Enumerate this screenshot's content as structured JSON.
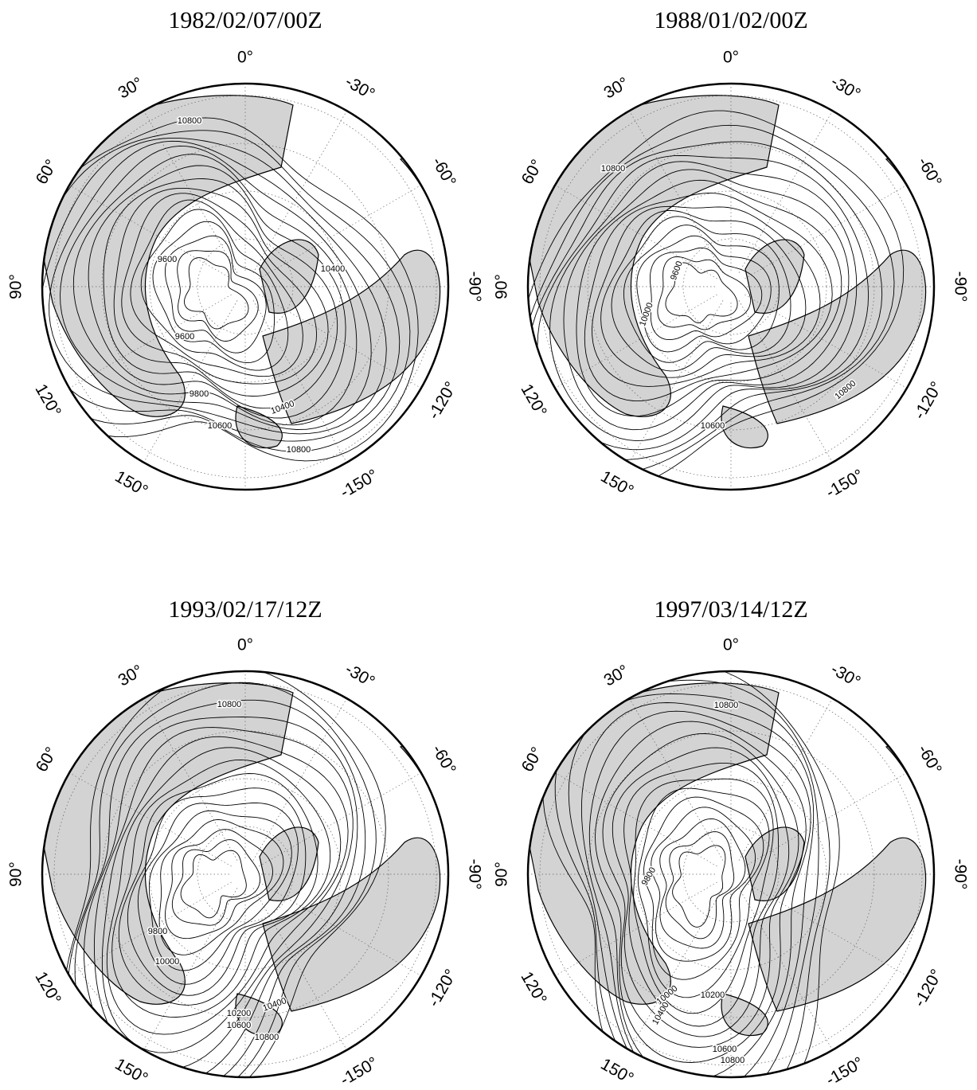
{
  "maps": [
    {
      "title": "1982/02/07/00Z",
      "longitude_labels": [
        "0°",
        "30°",
        "60°",
        "90°",
        "120°",
        "150°",
        "-30°",
        "-60°",
        "-90°",
        "-120°",
        "-150°"
      ],
      "contour_labels": [
        "10800",
        "9600",
        "9600",
        "9800",
        "10400",
        "10600",
        "10800",
        "10400"
      ]
    },
    {
      "title": "1988/01/02/00Z",
      "longitude_labels": [
        "0°",
        "30°",
        "60°",
        "90°",
        "120°",
        "150°",
        "-30°",
        "-60°",
        "-90°",
        "-120°",
        "-150°"
      ],
      "contour_labels": [
        "10800",
        "9600",
        "10000",
        "10800",
        "10600"
      ]
    },
    {
      "title": "1993/02/17/12Z",
      "longitude_labels": [
        "0°",
        "30°",
        "60°",
        "90°",
        "120°",
        "150°",
        "-30°",
        "-60°",
        "-90°",
        "-120°",
        "-150°"
      ],
      "contour_labels": [
        "10800",
        "9800",
        "10000",
        "10200",
        "10400",
        "10600",
        "10800"
      ]
    },
    {
      "title": "1997/03/14/12Z",
      "longitude_labels": [
        "0°",
        "30°",
        "60°",
        "90°",
        "120°",
        "150°",
        "-30°",
        "-60°",
        "-90°",
        "-120°",
        "-150°"
      ],
      "contour_labels": [
        "10800",
        "9800",
        "10200",
        "10000",
        "10400",
        "10600",
        "10800"
      ]
    }
  ]
}
